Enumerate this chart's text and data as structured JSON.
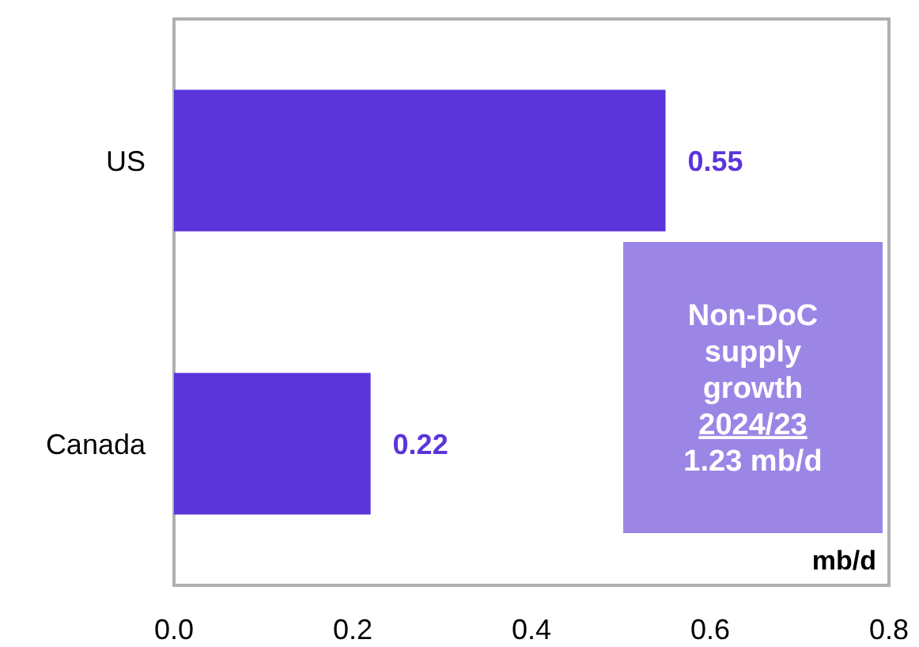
{
  "chart_data": {
    "type": "bar",
    "orientation": "horizontal",
    "categories": [
      "US",
      "Canada"
    ],
    "values": [
      0.55,
      0.22
    ],
    "color": "#5b35d9",
    "data_labels": true,
    "xlim": [
      0,
      0.8
    ],
    "xticks": [
      {
        "value": 0,
        "label": "0.0"
      },
      {
        "value": 0.2,
        "label": "0.2"
      },
      {
        "value": 0.4,
        "label": "0.4"
      },
      {
        "value": 0.6,
        "label": "0.6"
      },
      {
        "value": 0.8,
        "label": "0.8"
      }
    ],
    "xlabel": "mb/d",
    "grid": false,
    "annotations": [
      "Non-DoC\nsupply\ngrowth\n2024/23\n1.23 mb/d"
    ]
  }
}
